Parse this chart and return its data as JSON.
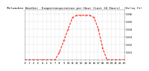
{
  "title": "Milwaukee Weather  Evapotranspiration per Hour (Last 24 Hours)  (Oz/sq ft)",
  "hours": [
    0,
    1,
    2,
    3,
    4,
    5,
    6,
    7,
    8,
    9,
    10,
    11,
    12,
    13,
    14,
    15,
    16,
    17,
    18,
    19,
    20,
    21,
    22,
    23
  ],
  "values": [
    0,
    0,
    0,
    0,
    0,
    0,
    0,
    0,
    0.01,
    0.025,
    0.04,
    0.055,
    0.058,
    0.058,
    0.058,
    0.058,
    0.055,
    0.04,
    0.015,
    0,
    0,
    0,
    0,
    0
  ],
  "line_color": "#ff0000",
  "line_style": "--",
  "line_width": 0.7,
  "bg_color": "#ffffff",
  "grid_color": "#aaaaaa",
  "ylim": [
    0,
    0.065
  ],
  "yticks": [
    0.01,
    0.02,
    0.03,
    0.04,
    0.05,
    0.06
  ],
  "ylabel_fontsize": 3.2,
  "title_fontsize": 3.2,
  "xlabel_fontsize": 2.8
}
